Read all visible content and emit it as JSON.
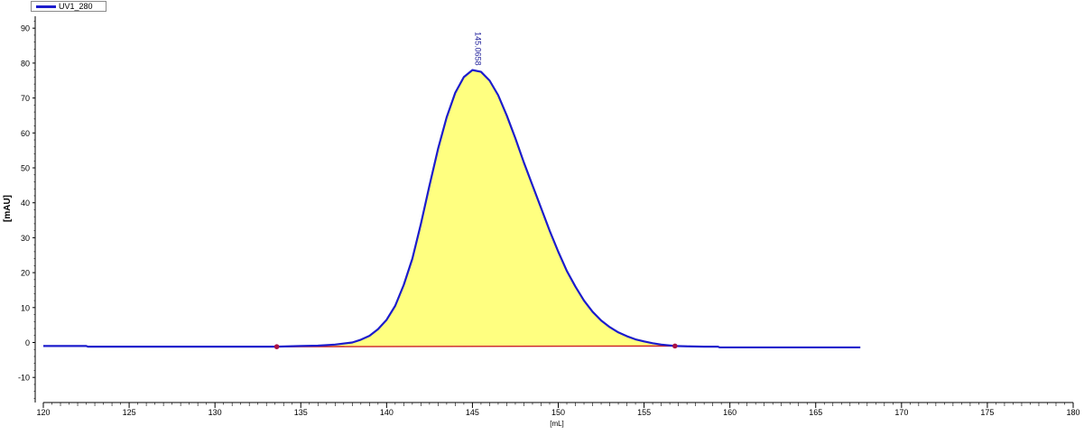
{
  "chart_data": {
    "type": "line",
    "title": "",
    "xlabel": "[mL]",
    "ylabel": "[mAU]",
    "xlim": [
      120,
      180
    ],
    "ylim": [
      -18,
      95
    ],
    "x_ticks": [
      "120",
      "125",
      "130",
      "135",
      "140",
      "145",
      "150",
      "155",
      "160",
      "165",
      "170",
      "175",
      "180"
    ],
    "y_ticks": [
      "90",
      "80",
      "70",
      "60",
      "50",
      "40",
      "30",
      "20",
      "10",
      "0",
      "-10"
    ],
    "legend": {
      "entries": [
        "UV1_280"
      ],
      "placement": "top-left"
    },
    "grid": false,
    "series": [
      {
        "name": "UV1_280",
        "color": "#1c1ccc",
        "x": [
          120.0,
          122.5,
          122.6,
          125,
          130,
          133.6,
          135,
          136,
          137,
          138,
          138.5,
          139,
          139.5,
          140,
          140.5,
          141,
          141.5,
          142,
          142.5,
          143,
          143.5,
          144,
          144.5,
          145.0,
          145.5,
          146,
          146.5,
          147,
          147.5,
          148,
          148.5,
          149,
          149.5,
          150,
          150.5,
          151,
          151.5,
          152,
          152.5,
          153,
          153.5,
          154,
          154.5,
          155,
          155.5,
          156,
          156.8,
          157.5,
          158.5,
          159.3,
          159.4,
          162,
          165,
          167.6
        ],
        "y": [
          -1.0,
          -1.0,
          -1.2,
          -1.2,
          -1.2,
          -1.2,
          -1.0,
          -0.9,
          -0.6,
          0.0,
          0.8,
          1.9,
          3.8,
          6.5,
          10.5,
          16.5,
          24.0,
          34.0,
          45.0,
          55.5,
          64.5,
          71.5,
          76.0,
          78.0,
          77.5,
          75.0,
          70.8,
          65.0,
          58.5,
          51.5,
          45.0,
          38.5,
          32.0,
          26.0,
          20.5,
          16.0,
          12.0,
          8.8,
          6.3,
          4.4,
          2.9,
          1.8,
          0.9,
          0.3,
          -0.2,
          -0.6,
          -1.0,
          -1.1,
          -1.2,
          -1.2,
          -1.4,
          -1.4,
          -1.4,
          -1.4
        ]
      }
    ],
    "peak": {
      "label": "145.0658",
      "x": 145.0658,
      "y": 78.0,
      "fill_color": "#ffff80"
    },
    "integration": {
      "baseline_color": "#cc2222",
      "start": {
        "x": 133.6,
        "y": -1.2
      },
      "end": {
        "x": 156.8,
        "y": -1.0
      }
    }
  }
}
